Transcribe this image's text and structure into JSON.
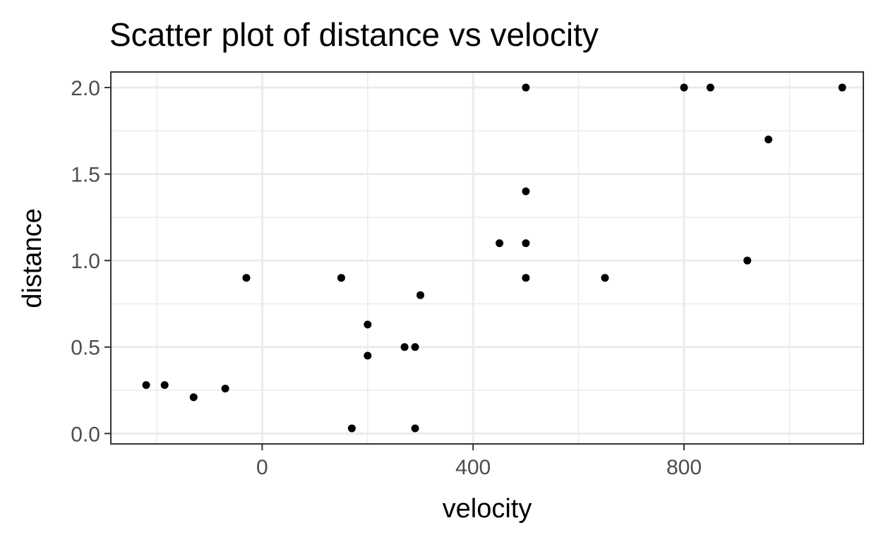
{
  "chart_data": {
    "type": "scatter",
    "title": "Scatter plot of distance vs velocity",
    "xlabel": "velocity",
    "ylabel": "distance",
    "xlim": [
      -287,
      1140
    ],
    "ylim": [
      -0.06,
      2.09
    ],
    "x_ticks": [
      0,
      400,
      800
    ],
    "x_tick_labels": [
      "0",
      "400",
      "800"
    ],
    "x_minor": [
      -200,
      200,
      600,
      1000
    ],
    "y_ticks": [
      0.0,
      0.5,
      1.0,
      1.5,
      2.0
    ],
    "y_tick_labels": [
      "0.0",
      "0.5",
      "1.0",
      "1.5",
      "2.0"
    ],
    "y_minor": [
      0.25,
      0.75,
      1.25,
      1.75
    ],
    "grid": true,
    "point_color": "#000000",
    "points": [
      {
        "x": -220,
        "y": 0.28
      },
      {
        "x": -185,
        "y": 0.28
      },
      {
        "x": -130,
        "y": 0.21
      },
      {
        "x": -70,
        "y": 0.26
      },
      {
        "x": -30,
        "y": 0.9
      },
      {
        "x": 150,
        "y": 0.9
      },
      {
        "x": 170,
        "y": 0.03
      },
      {
        "x": 200,
        "y": 0.63
      },
      {
        "x": 200,
        "y": 0.45
      },
      {
        "x": 270,
        "y": 0.5
      },
      {
        "x": 290,
        "y": 0.5
      },
      {
        "x": 290,
        "y": 0.03
      },
      {
        "x": 300,
        "y": 0.8
      },
      {
        "x": 450,
        "y": 1.1
      },
      {
        "x": 500,
        "y": 2.0
      },
      {
        "x": 500,
        "y": 1.4
      },
      {
        "x": 500,
        "y": 1.1
      },
      {
        "x": 500,
        "y": 0.9
      },
      {
        "x": 650,
        "y": 0.9
      },
      {
        "x": 800,
        "y": 2.0
      },
      {
        "x": 850,
        "y": 2.0
      },
      {
        "x": 920,
        "y": 1.0
      },
      {
        "x": 960,
        "y": 1.7
      },
      {
        "x": 1100,
        "y": 2.0
      }
    ]
  }
}
